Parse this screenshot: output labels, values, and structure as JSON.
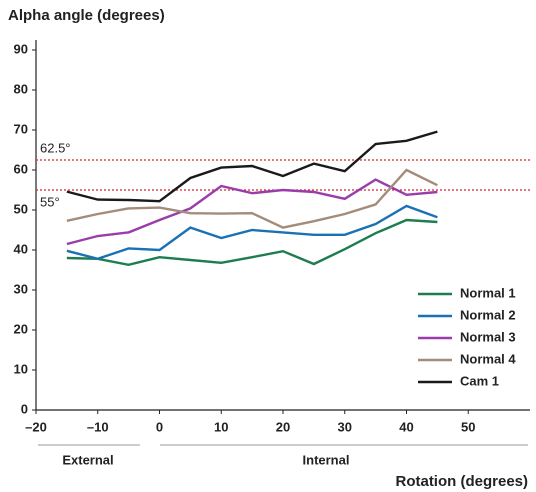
{
  "chart_data": {
    "type": "line",
    "title": "Alpha angle (degrees)",
    "x_label": "Rotation (degrees)",
    "groups": [
      "External",
      "Internal"
    ],
    "x": [
      -15,
      -10,
      -5,
      0,
      5,
      10,
      15,
      20,
      25,
      30,
      35,
      40,
      45
    ],
    "series": [
      {
        "name": "Normal 1",
        "color": "#1e7d4e",
        "values": [
          38,
          37.8,
          36.3,
          38.2,
          37.5,
          36.8,
          38.2,
          39.7,
          36.5,
          40.2,
          44.2,
          47.5,
          47
        ]
      },
      {
        "name": "Normal 2",
        "color": "#1a72b4",
        "values": [
          39.8,
          37.8,
          40.4,
          40,
          45.6,
          43,
          45,
          44.4,
          43.8,
          43.8,
          46.5,
          51,
          48.2
        ]
      },
      {
        "name": "Normal 3",
        "color": "#9a3dab",
        "values": [
          41.5,
          43.5,
          44.4,
          47.5,
          50.4,
          56,
          54.2,
          55,
          54.5,
          52.8,
          57.6,
          53.8,
          54.5
        ]
      },
      {
        "name": "Normal 4",
        "color": "#a38c7a",
        "values": [
          47.3,
          49,
          50.4,
          50.6,
          49.2,
          49.1,
          49.2,
          45.6,
          47.2,
          49,
          51.4,
          60,
          56.2
        ]
      },
      {
        "name": "Cam 1",
        "color": "#1a1a1a",
        "values": [
          54.6,
          52.6,
          52.5,
          52.2,
          58,
          60.6,
          61,
          58.5,
          61.6,
          59.7,
          66.5,
          67.3,
          69.6
        ]
      }
    ],
    "reference_lines": [
      {
        "value": 62.5,
        "label": "62.5°",
        "color": "#d9232a"
      },
      {
        "value": 55,
        "label": "55°",
        "color": "#d9232a"
      }
    ],
    "xlim": [
      -20,
      60
    ],
    "xticks": [
      {
        "value": -20,
        "label": "–20"
      },
      {
        "value": -10,
        "label": "–10"
      },
      0,
      10,
      20,
      30,
      40,
      50
    ],
    "ylim": [
      0,
      90
    ],
    "yticks": [
      0,
      10,
      20,
      30,
      40,
      50,
      60,
      70,
      80,
      90
    ],
    "legend": "lower right"
  }
}
